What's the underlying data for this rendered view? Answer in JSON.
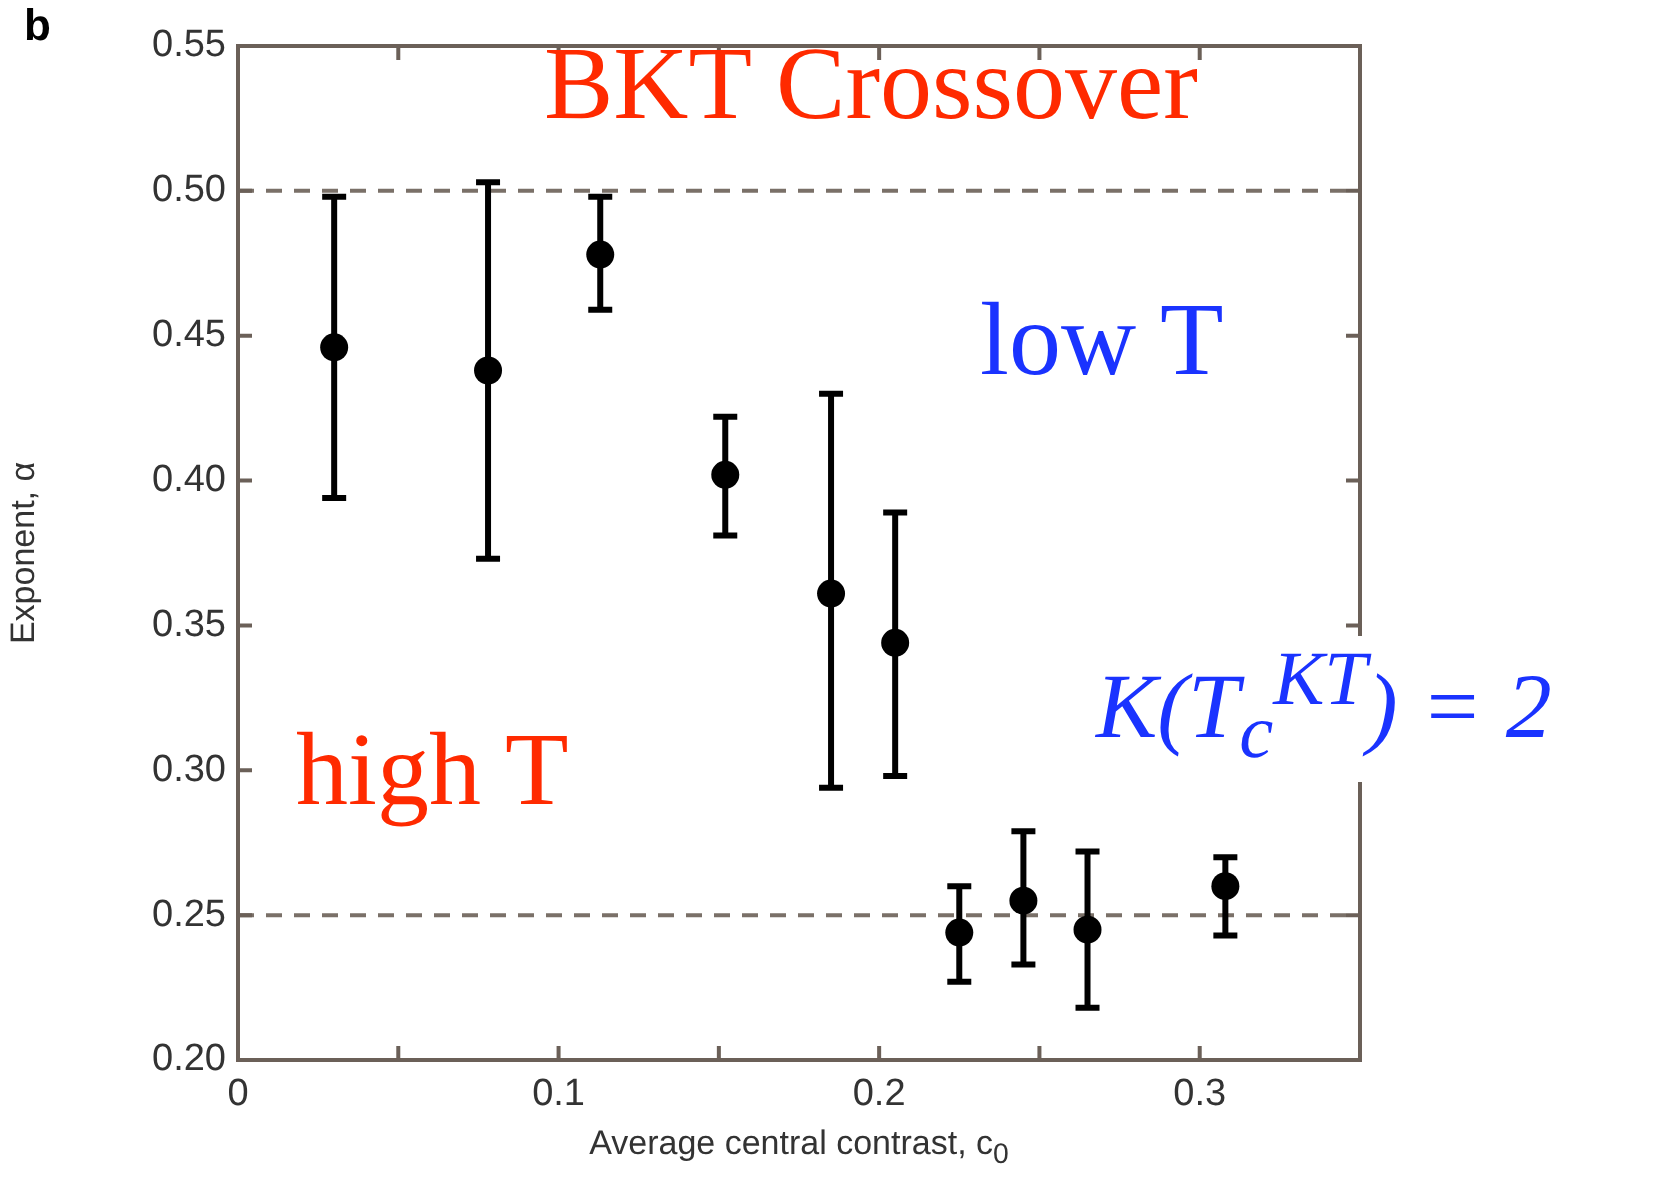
{
  "chart_data": {
    "type": "scatter",
    "xlabel": "Average central contrast, c$_{0}$",
    "ylabel": "Exponent, α",
    "x": [
      0.03,
      0.078,
      0.113,
      0.152,
      0.185,
      0.205,
      0.225,
      0.245,
      0.265,
      0.308
    ],
    "series": [
      {
        "color": "#000000",
        "values": [
          0.446,
          0.438,
          0.478,
          0.402,
          0.361,
          0.344,
          0.244,
          0.255,
          0.245,
          0.26
        ],
        "errors": [
          [
            0.394,
            0.498
          ],
          [
            0.373,
            0.503
          ],
          [
            0.459,
            0.498
          ],
          [
            0.381,
            0.422
          ],
          [
            0.294,
            0.43
          ],
          [
            0.298,
            0.389
          ],
          [
            0.227,
            0.26
          ],
          [
            0.233,
            0.279
          ],
          [
            0.218,
            0.272
          ],
          [
            0.243,
            0.27
          ]
        ]
      }
    ],
    "marker": "circle",
    "xlim": [
      0,
      0.35
    ],
    "xticks": [
      0,
      {
        "value": 0.05,
        "label": null
      },
      0.1,
      {
        "value": 0.15,
        "label": null
      },
      0.2,
      {
        "value": 0.25,
        "label": null
      },
      0.3,
      {
        "value": 0.35,
        "label": null
      }
    ],
    "ylim": [
      0.2,
      0.55
    ],
    "yticks": [
      {
        "value": 0.2,
        "label": "0.20"
      },
      {
        "value": 0.25,
        "label": "0.25"
      },
      {
        "value": 0.3,
        "label": "0.30"
      },
      {
        "value": 0.35,
        "label": "0.35"
      },
      {
        "value": 0.4,
        "label": "0.40"
      },
      {
        "value": 0.45,
        "label": "0.45"
      },
      {
        "value": 0.5,
        "label": "0.50"
      },
      {
        "value": 0.55,
        "label": "0.55"
      }
    ],
    "ref_lines": [
      {
        "axis": "y",
        "value": 0.5,
        "line_style": "dashed",
        "color": "#7a7068"
      },
      {
        "axis": "y",
        "value": 0.25,
        "line_style": "dashed",
        "color": "#7a7068"
      }
    ],
    "legend": false,
    "annotations": [
      "b",
      "BKT Crossover",
      "low T",
      "high T",
      "K(T$_{c}$$^{KT}$) = 2"
    ]
  }
}
